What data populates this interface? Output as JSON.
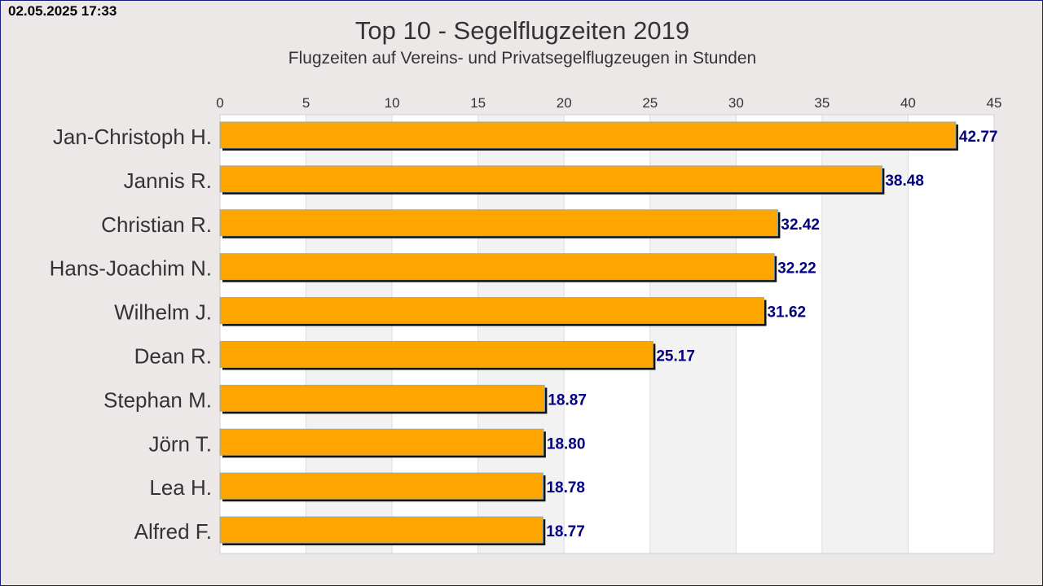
{
  "timestamp": "02.05.2025 17:33",
  "chart_data": {
    "type": "bar",
    "orientation": "horizontal",
    "title": "Top 10 - Segelflugzeiten 2019",
    "subtitle": "Flugzeiten auf Vereins- und Privatsegelflugzeugen in Stunden",
    "xlabel": "",
    "ylabel": "",
    "xlim": [
      0,
      45
    ],
    "ticks": [
      0,
      5,
      10,
      15,
      20,
      25,
      30,
      35,
      40,
      45
    ],
    "axis_position": "top",
    "grid": true,
    "categories": [
      "Jan-Christoph H.",
      "Jannis R.",
      "Christian R.",
      "Hans-Joachim N.",
      "Wilhelm J.",
      "Dean R.",
      "Stephan M.",
      "Jörn T.",
      "Lea H.",
      "Alfred F."
    ],
    "values": [
      42.77,
      38.48,
      32.42,
      32.22,
      31.62,
      25.17,
      18.87,
      18.8,
      18.78,
      18.77
    ],
    "value_labels": [
      "42.77",
      "38.48",
      "32.42",
      "32.22",
      "31.62",
      "25.17",
      "18.87",
      "18.80",
      "18.78",
      "18.77"
    ],
    "colors": {
      "bar": "#ffa500",
      "value_label": "#000080",
      "band_a": "#ffffff",
      "band_b": "#f2f2f2"
    }
  }
}
